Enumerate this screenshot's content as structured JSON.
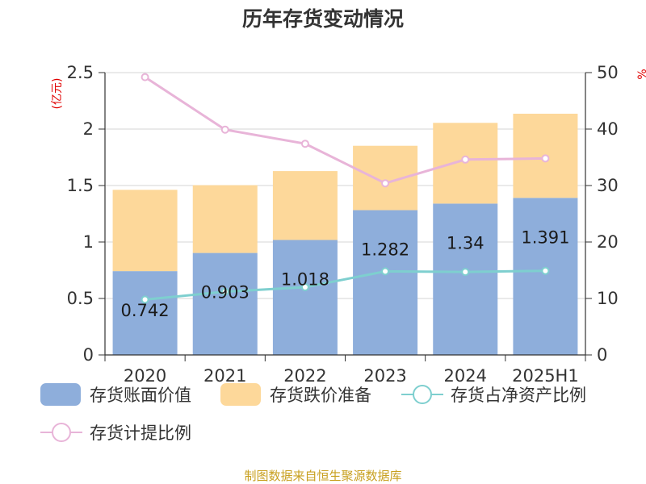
{
  "chart_data": {
    "type": "bar",
    "title": "历年存货变动情况",
    "categories": [
      "2020",
      "2021",
      "2022",
      "2023",
      "2024",
      "2025H1"
    ],
    "y_left_unit": "(亿元)",
    "y_right_unit": "%",
    "ylim_left": [
      0,
      2.5
    ],
    "yticks_left": [
      "0",
      "0.5",
      "1",
      "1.5",
      "2",
      "2.5"
    ],
    "ylim_right": [
      0,
      50
    ],
    "yticks_right": [
      "0",
      "10",
      "20",
      "30",
      "40",
      "50"
    ],
    "grid": true,
    "legend_position": "bottom",
    "series": [
      {
        "name": "存货账面价值",
        "kind": "bar",
        "stack": true,
        "color": "#8eaedb",
        "values": [
          0.742,
          0.903,
          1.018,
          1.282,
          1.34,
          1.391
        ],
        "labels": [
          "0.742",
          "0.903",
          "1.018",
          "1.282",
          "1.34",
          "1.391"
        ]
      },
      {
        "name": "存货跌价准备",
        "kind": "bar",
        "stack": true,
        "color": "#fdd89a",
        "values": [
          0.72,
          0.6,
          0.61,
          0.57,
          0.715,
          0.745
        ]
      },
      {
        "name": "存货占净资产比例",
        "kind": "line",
        "axis": "right",
        "color": "#7ecfcf",
        "values": [
          9.8,
          11.2,
          12.0,
          14.8,
          14.7,
          14.9
        ]
      },
      {
        "name": "存货计提比例",
        "kind": "line",
        "axis": "right",
        "color": "#e8b4d8",
        "values": [
          49.2,
          39.9,
          37.4,
          30.4,
          34.6,
          34.8
        ]
      }
    ]
  },
  "source": "制图数据来自恒生聚源数据库"
}
